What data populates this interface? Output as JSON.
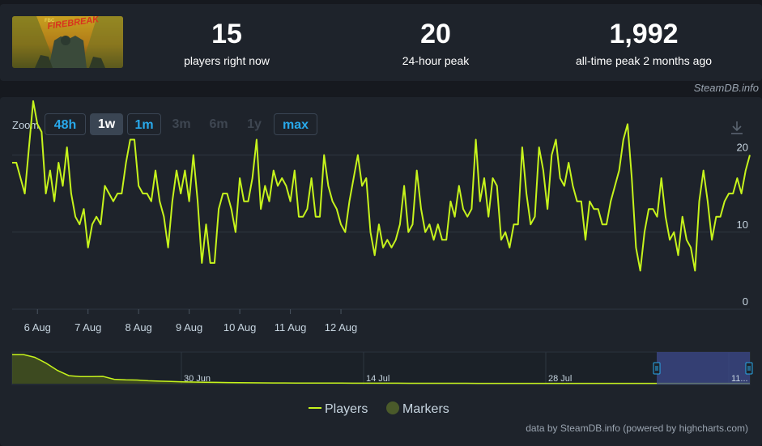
{
  "stats": [
    {
      "value": "15",
      "label": "players right now"
    },
    {
      "value": "20",
      "label": "24-hour peak"
    },
    {
      "value": "1,992",
      "label": "all-time peak 2 months ago"
    }
  ],
  "thumbnail_text": "FBC FIREBREAK",
  "credit_top": "SteamDB.info",
  "zoom": {
    "label": "Zoom",
    "buttons": [
      "48h",
      "1w",
      "1m",
      "3m",
      "6m",
      "1y",
      "max"
    ],
    "selected": "1w",
    "enabled": [
      "48h",
      "1w",
      "1m",
      "max"
    ]
  },
  "legend": {
    "players": "Players",
    "markers": "Markers"
  },
  "credit_bottom": "data by SteamDB.info (powered by highcharts.com)",
  "colors": {
    "line": "#c6f31c",
    "accent": "#28a8ea",
    "marker": "#4a5a2a"
  },
  "chart_data": {
    "type": "line",
    "series": [
      {
        "name": "Players",
        "x_start": "2025-08-05T12:00",
        "step_hours": 2,
        "values": [
          19,
          19,
          17,
          15,
          21,
          27,
          24,
          23,
          15,
          18,
          14,
          19,
          16,
          21,
          15,
          12,
          11,
          13,
          8,
          11,
          12,
          11,
          16,
          15,
          14,
          15,
          15,
          19,
          22,
          22,
          16,
          15,
          15,
          14,
          18,
          14,
          12,
          8,
          14,
          18,
          15,
          18,
          14,
          20,
          14,
          6,
          11,
          6,
          6,
          13,
          15,
          15,
          13,
          10,
          17,
          14,
          14,
          17,
          22,
          13,
          16,
          14,
          18,
          16,
          17,
          16,
          14,
          18,
          12,
          12,
          13,
          17,
          12,
          12,
          20,
          16,
          14,
          13,
          11,
          10,
          14,
          17,
          20,
          16,
          17,
          10,
          7,
          11,
          8,
          9,
          8,
          9,
          11,
          16,
          10,
          11,
          18,
          13,
          10,
          11,
          9,
          11,
          9,
          9,
          14,
          12,
          16,
          13,
          12,
          13,
          22,
          14,
          17,
          12,
          17,
          16,
          9,
          10,
          8,
          11,
          11,
          21,
          15,
          11,
          12,
          21,
          18,
          13,
          20,
          22,
          17,
          16,
          19,
          16,
          14,
          14,
          9,
          14,
          13,
          13,
          11,
          11,
          14,
          16,
          18,
          22,
          24,
          17,
          8,
          5,
          10,
          13,
          13,
          12,
          17,
          12,
          9,
          10,
          7,
          12,
          9,
          8,
          5,
          14,
          18,
          14,
          9,
          12,
          12,
          14,
          15,
          15,
          17,
          15,
          18,
          20
        ]
      }
    ],
    "x_tick_labels": [
      "6 Aug",
      "7 Aug",
      "8 Aug",
      "9 Aug",
      "10 Aug",
      "11 Aug",
      "12 Aug"
    ],
    "y_ticks": [
      0,
      10,
      20
    ],
    "ylim": [
      0,
      21
    ],
    "legend": "bottom-center",
    "grid": true,
    "navigator": {
      "series": [
        {
          "name": "Players",
          "values": [
            1992,
            1992,
            1800,
            1400,
            900,
            550,
            480,
            480,
            500,
            300,
            260,
            250,
            200,
            170,
            150,
            130,
            110,
            100,
            90,
            80,
            70,
            60,
            55,
            50,
            48,
            45,
            42,
            40,
            38,
            36,
            35,
            34,
            33,
            32,
            31,
            30,
            29,
            28,
            27,
            26,
            25,
            24,
            23,
            22,
            22,
            21,
            21,
            21,
            20,
            20,
            20,
            20,
            20,
            20,
            20,
            20,
            20,
            20,
            20,
            20,
            20,
            20,
            20,
            20,
            20,
            20
          ]
        }
      ],
      "tick_labels": [
        "30 Jun",
        "14 Jul",
        "28 Jul",
        "11..."
      ]
    }
  }
}
